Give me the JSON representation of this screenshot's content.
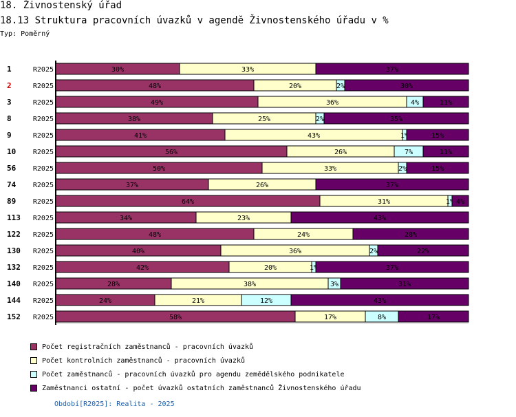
{
  "header": {
    "title": "18. Živnostenský úřad",
    "subtitle": "18.13 Struktura pracovních úvazků v agendě Živnostenského úřadu v %",
    "typ": "Typ: Poměrný"
  },
  "footer": {
    "period": "Období[R2025]: Realita - 2025"
  },
  "chart_data": {
    "type": "bar",
    "orientation": "horizontal",
    "stacked": true,
    "normalized_percent": true,
    "row_ids": [
      "1",
      "2",
      "3",
      "8",
      "9",
      "10",
      "56",
      "74",
      "89",
      "113",
      "122",
      "130",
      "132",
      "140",
      "144",
      "152"
    ],
    "row_id_colors": [
      "#000000",
      "#cc0000",
      "#000000",
      "#000000",
      "#000000",
      "#000000",
      "#000000",
      "#000000",
      "#000000",
      "#000000",
      "#000000",
      "#000000",
      "#000000",
      "#000000",
      "#000000",
      "#000000"
    ],
    "categories": [
      "R2025",
      "R2025",
      "R2025",
      "R2025",
      "R2025",
      "R2025",
      "R2025",
      "R2025",
      "R2025",
      "R2025",
      "R2025",
      "R2025",
      "R2025",
      "R2025",
      "R2025",
      "R2025"
    ],
    "series": [
      {
        "name": "Počet registračních zaměstnanců - pracovních úvazků",
        "color": "#993366",
        "values": [
          30,
          48,
          49,
          38,
          41,
          56,
          50,
          37,
          64,
          34,
          48,
          40,
          42,
          28,
          24,
          58
        ],
        "labels": [
          "30%",
          "48%",
          "49%",
          "38%",
          "41%",
          "56%",
          "50%",
          "37%",
          "64%",
          "34%",
          "48%",
          "40%",
          "42%",
          "28%",
          "24%",
          "58%"
        ]
      },
      {
        "name": "Počet kontrolních zaměstnanců - pracovních úvazků",
        "color": "#ffffcc",
        "values": [
          33,
          20,
          36,
          25,
          43,
          26,
          33,
          26,
          31,
          23,
          24,
          36,
          20,
          38,
          21,
          17
        ],
        "labels": [
          "33%",
          "20%",
          "36%",
          "25%",
          "43%",
          "26%",
          "33%",
          "26%",
          "31%",
          "23%",
          "24%",
          "36%",
          "20%",
          "38%",
          "21%",
          "17%"
        ]
      },
      {
        "name": "Počet zaměstnanců - pracovních úvazků pro agendu zemědělského podnikatele",
        "color": "#ccffff",
        "values": [
          0,
          2,
          4,
          2,
          1,
          7,
          2,
          0,
          1,
          0,
          0,
          2,
          1,
          3,
          12,
          8
        ],
        "labels": [
          "",
          "2%",
          "4%",
          "2%",
          "1%",
          "7%",
          "2%",
          "",
          "1%",
          "",
          "",
          "2%",
          "1%",
          "3%",
          "12%",
          "8%"
        ]
      },
      {
        "name": "Zaměstnanci ostatní - počet úvazků ostatních zaměstnanců Živnostenského úřadu",
        "color": "#660066",
        "values": [
          37,
          30,
          11,
          35,
          15,
          11,
          15,
          37,
          4,
          43,
          28,
          22,
          37,
          31,
          43,
          17
        ],
        "labels": [
          "37%",
          "30%",
          "11%",
          "35%",
          "15%",
          "11%",
          "15%",
          "37%",
          "4%",
          "43%",
          "28%",
          "22%",
          "37%",
          "31%",
          "43%",
          "17%"
        ]
      }
    ],
    "xlim": [
      0,
      100
    ]
  }
}
